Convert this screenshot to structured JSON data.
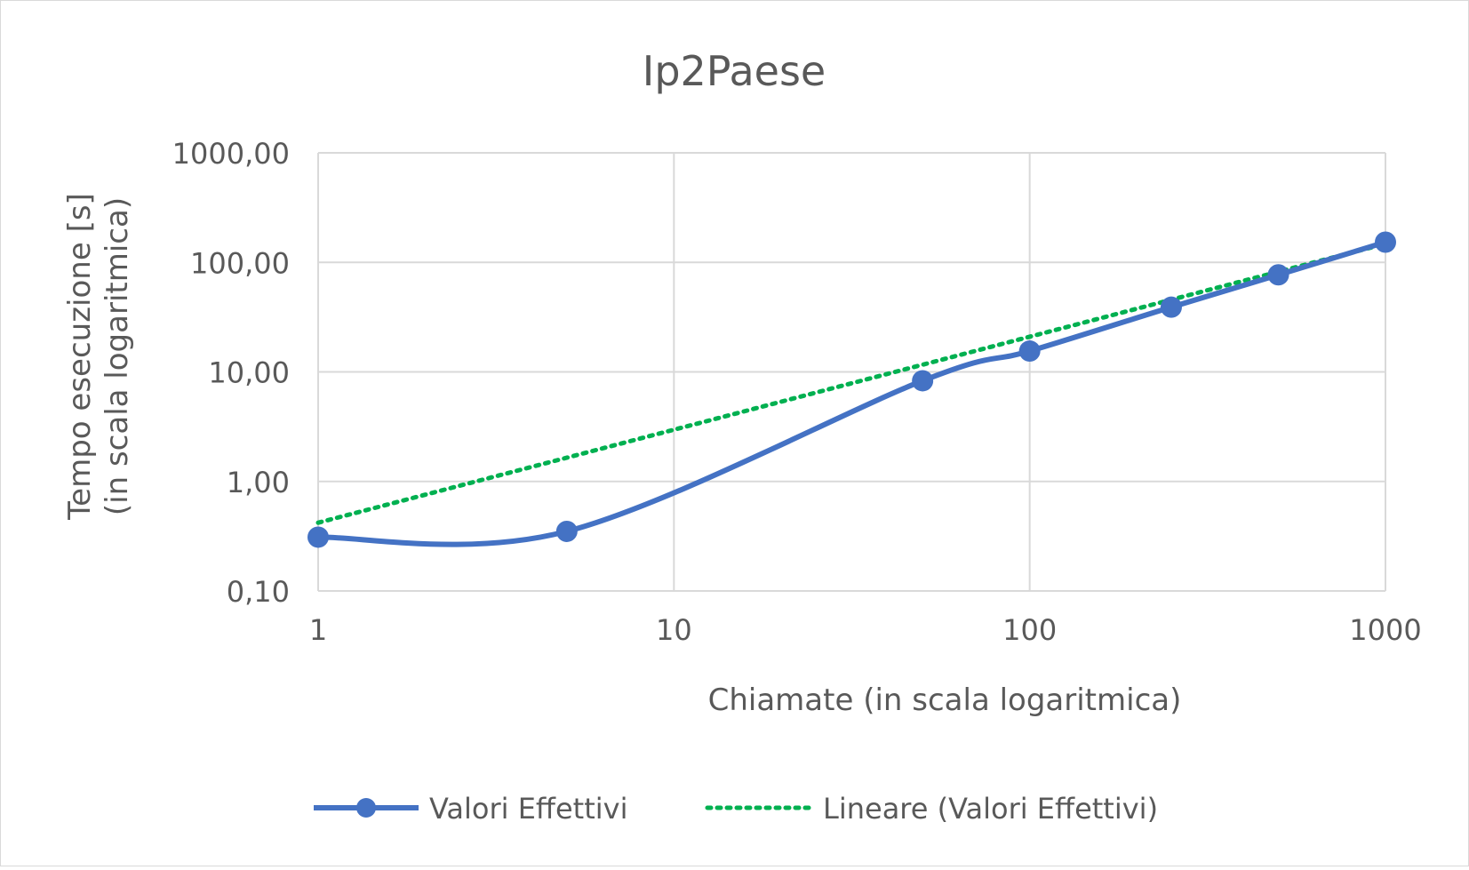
{
  "chart_data": {
    "type": "line",
    "title": "Ip2Paese",
    "xlabel": "Chiamate (in scala logaritmica)",
    "ylabel_lines": [
      "Tempo esecuzione [s]",
      "(in scala logaritmica)"
    ],
    "x_scale": "log",
    "y_scale": "log",
    "xlim": [
      1,
      1000
    ],
    "ylim": [
      0.1,
      1000
    ],
    "x_ticks": [
      1,
      10,
      100,
      1000
    ],
    "x_tick_labels": [
      "1",
      "10",
      "100",
      "1000"
    ],
    "y_ticks": [
      0.1,
      1,
      10,
      100,
      1000
    ],
    "y_tick_labels": [
      "0,10",
      "1,00",
      "10,00",
      "100,00",
      "1000,00"
    ],
    "grid": true,
    "legend_position": "bottom",
    "series": [
      {
        "name": "Valori Effettivi",
        "color": "#4472c4",
        "style": "smooth-line-with-markers",
        "x": [
          1,
          5,
          50,
          100,
          250,
          500,
          1000
        ],
        "y": [
          0.31,
          0.35,
          8.3,
          15.5,
          39,
          77,
          153
        ]
      },
      {
        "name": "Lineare (Valori Effettivi)",
        "color": "#00b050",
        "style": "dotted-trendline",
        "x": [
          1,
          1000
        ],
        "y": [
          0.42,
          148
        ]
      }
    ]
  }
}
